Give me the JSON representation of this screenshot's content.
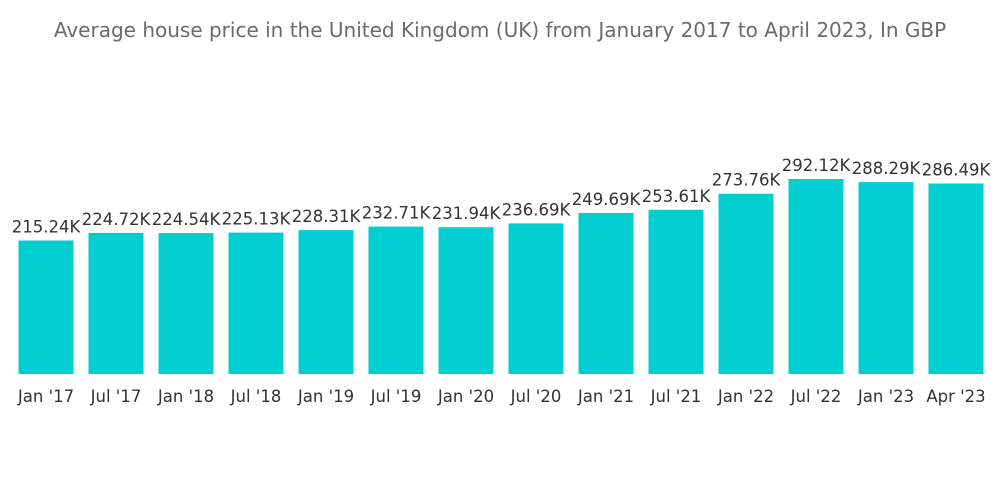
{
  "chart_data": {
    "type": "bar",
    "title": "Average house price in the United Kingdom (UK) from January 2017 to April 2023, In GBP",
    "xlabel": "",
    "ylabel": "",
    "categories": [
      "Jan '17",
      "Jul '17",
      "Jan '18",
      "Jul '18",
      "Jan '19",
      "Jul '19",
      "Jan '20",
      "Jul '20",
      "Jan '21",
      "Jul '21",
      "Jan '22",
      "Jul '22",
      "Jan '23",
      "Apr '23"
    ],
    "values": [
      215.24,
      224.72,
      224.54,
      225.13,
      228.31,
      232.71,
      231.94,
      236.69,
      249.69,
      253.61,
      273.76,
      292.12,
      288.29,
      286.49
    ],
    "value_labels": [
      "215.24K",
      "224.72K",
      "224.54K",
      "225.13K",
      "228.31K",
      "232.71K",
      "231.94K",
      "236.69K",
      "249.69K",
      "253.61K",
      "273.76K",
      "292.12K",
      "288.29K",
      "286.49K"
    ],
    "value_unit": "K",
    "grid": false,
    "legend": "none",
    "colors": {
      "bar": "#00CED1",
      "title": "#6b6b6b",
      "text": "#333333"
    }
  }
}
